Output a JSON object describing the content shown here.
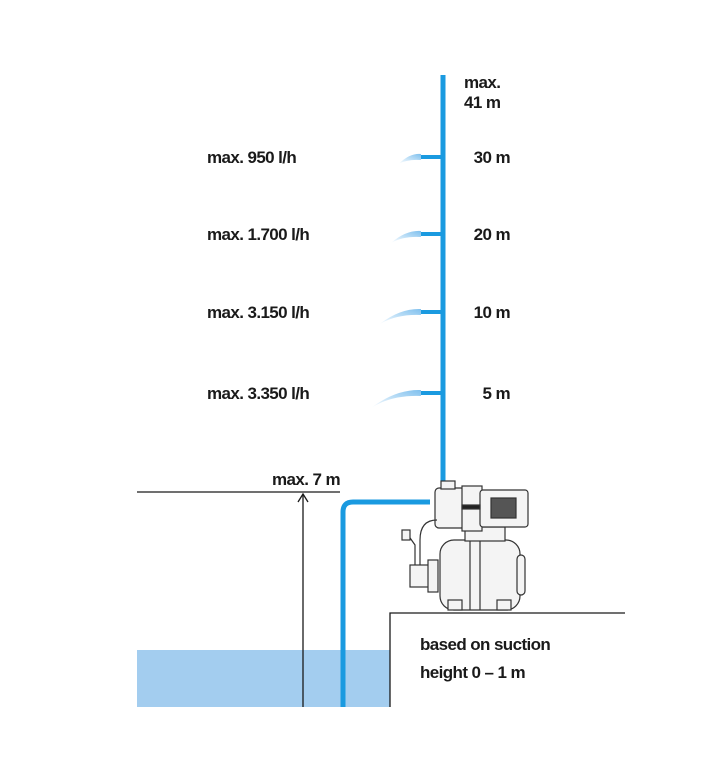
{
  "colors": {
    "pipe": "#1a9ae0",
    "water": "#a3cdef",
    "spray": "#9fd0f2",
    "line": "#1a1a1a"
  },
  "max_height": [
    "max.",
    "41 m"
  ],
  "levels": [
    {
      "height": "30 m",
      "flow": "max. 950 l/h"
    },
    {
      "height": "20 m",
      "flow": "max. 1.700 l/h"
    },
    {
      "height": "10 m",
      "flow": "max. 3.150 l/h"
    },
    {
      "height": "5 m",
      "flow": "max. 3.350 l/h"
    }
  ],
  "suction_label": "max. 7 m",
  "note": [
    "based on suction",
    "height 0 – 1 m"
  ],
  "icons": {
    "pump": "garden-pump-with-tank"
  }
}
